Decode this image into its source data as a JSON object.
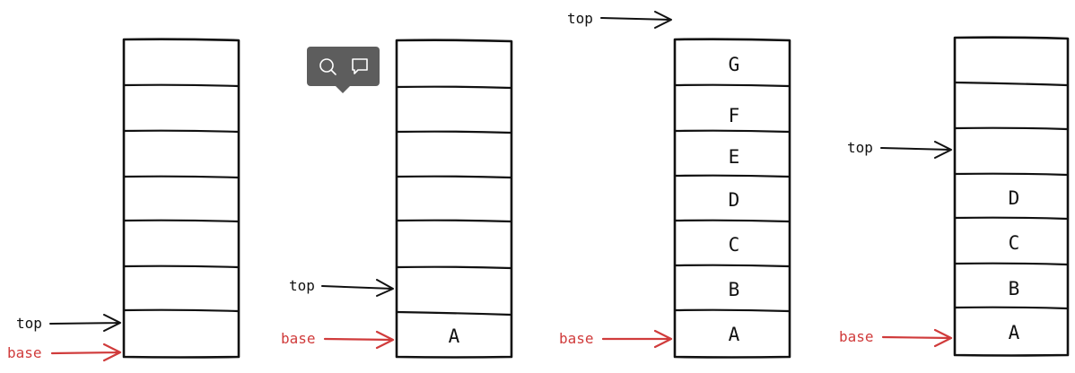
{
  "stacks": [
    {
      "cells": [
        "",
        "",
        "",
        "",
        "",
        "",
        ""
      ],
      "top_label": "top",
      "base_label": "base"
    },
    {
      "cells": [
        "",
        "",
        "",
        "",
        "",
        "",
        "A"
      ],
      "top_label": "top",
      "base_label": "base"
    },
    {
      "cells": [
        "G",
        "F",
        "E",
        "D",
        "C",
        "B",
        "A"
      ],
      "top_label": "top",
      "base_label": "base"
    },
    {
      "cells": [
        "",
        "",
        "",
        "D",
        "C",
        "B",
        "A"
      ],
      "top_label": "top",
      "base_label": "base"
    }
  ],
  "tooltip": {
    "icons": [
      "search-icon",
      "comment-icon"
    ]
  },
  "colors": {
    "ink": "#111111",
    "base_pointer": "#d03b3b",
    "tooltip_bg": "#5d5d5d"
  }
}
